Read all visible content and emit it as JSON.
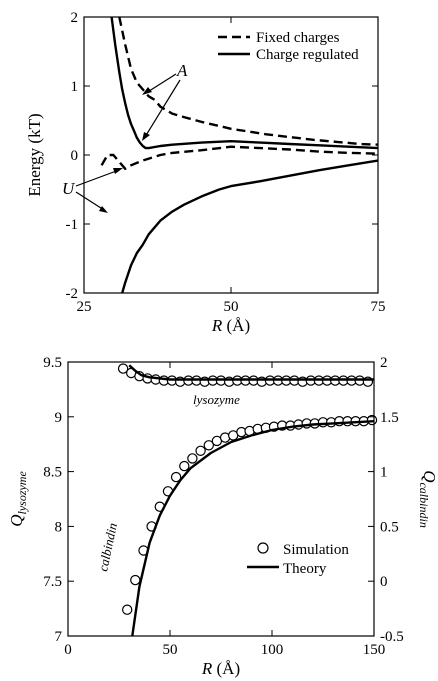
{
  "chart_data": [
    {
      "type": "line",
      "xlabel_var": "R",
      "xlabel_unit": " (Å)",
      "ylabel": "Energy (kT)",
      "xlim": [
        25,
        75
      ],
      "ylim": [
        -2,
        2
      ],
      "xticks": [
        "25",
        "50",
        "75"
      ],
      "yticks": [
        "-2",
        "-1",
        "0",
        "1",
        "2"
      ],
      "legend": [
        "Fixed charges",
        "Charge regulated"
      ],
      "annotations": [
        "A",
        "U"
      ],
      "series": [
        {
          "name": "Fixed charges",
          "label": "A",
          "style": "dashed",
          "x": [
            31.0,
            32.0,
            33.0,
            34.0,
            35.0,
            36.0,
            37.0,
            38.0,
            40.0,
            42.0,
            45.0,
            48.0,
            50.0,
            53.0,
            56.0,
            60.0,
            64.0,
            68.0,
            72.0,
            75.0
          ],
          "y": [
            2.0,
            1.6,
            1.25,
            1.05,
            0.95,
            0.85,
            0.8,
            0.7,
            0.6,
            0.55,
            0.48,
            0.42,
            0.38,
            0.34,
            0.3,
            0.26,
            0.22,
            0.19,
            0.16,
            0.15
          ]
        },
        {
          "name": "Charge regulated",
          "label": "A",
          "style": "solid",
          "x": [
            29.7,
            30.3,
            31.0,
            31.5,
            32.0,
            32.5,
            33.0,
            33.5,
            34.0,
            34.5,
            35.0,
            35.5,
            36.0,
            38.0,
            40.0,
            45.0,
            50.0,
            55.0,
            60.0,
            65.0,
            70.0,
            75.0
          ],
          "y": [
            2.0,
            1.6,
            1.2,
            0.95,
            0.75,
            0.58,
            0.45,
            0.35,
            0.25,
            0.18,
            0.13,
            0.1,
            0.1,
            0.13,
            0.15,
            0.18,
            0.2,
            0.18,
            0.16,
            0.14,
            0.12,
            0.1
          ]
        },
        {
          "name": "Fixed charges",
          "label": "U",
          "style": "dashed",
          "x": [
            28.0,
            29.0,
            30.0,
            31.0,
            32.0,
            33.0,
            35.0,
            38.0,
            40.0,
            45.0,
            50.0,
            55.0,
            60.0,
            65.0,
            70.0,
            75.0
          ],
          "y": [
            -0.15,
            0.0,
            0.0,
            -0.1,
            -0.2,
            -0.15,
            -0.08,
            0.0,
            0.03,
            0.07,
            0.12,
            0.1,
            0.08,
            0.05,
            0.03,
            0.02
          ]
        },
        {
          "name": "Charge regulated",
          "label": "U",
          "style": "solid",
          "x": [
            31.5,
            32.0,
            33.0,
            34.0,
            35.0,
            36.0,
            38.0,
            40.0,
            42.0,
            45.0,
            48.0,
            50.0,
            55.0,
            60.0,
            65.0,
            70.0,
            75.0
          ],
          "y": [
            -2.0,
            -1.85,
            -1.6,
            -1.42,
            -1.3,
            -1.15,
            -0.95,
            -0.82,
            -0.72,
            -0.6,
            -0.5,
            -0.45,
            -0.38,
            -0.3,
            -0.22,
            -0.15,
            -0.08
          ]
        }
      ]
    },
    {
      "type": "line",
      "xlabel_var": "R",
      "xlabel_unit": " (Å)",
      "ylabel_var": "Q",
      "ylabel_sub": "lysozyme",
      "y2label_var": "Q",
      "y2label_sub": "calbindin",
      "xlim": [
        0,
        150
      ],
      "ylim": [
        7,
        9.5
      ],
      "y2lim": [
        -0.5,
        2
      ],
      "xticks": [
        "0",
        "50",
        "100",
        "150"
      ],
      "yticks": [
        "7",
        "7.5",
        "8",
        "8.5",
        "9",
        "9.5"
      ],
      "y2ticks": [
        "-0.5",
        "0",
        "0.5",
        "1",
        "1.5",
        "2"
      ],
      "legend": [
        "Simulation",
        "Theory"
      ],
      "curve_labels": [
        "lysozyme",
        "calbindin"
      ],
      "series": [
        {
          "name": "Simulation",
          "label": "lysozyme",
          "axis": "left",
          "style": "markers",
          "x": [
            27,
            31,
            35,
            39,
            43,
            47,
            51,
            55,
            59,
            63,
            67,
            71,
            75,
            79,
            83,
            87,
            91,
            95,
            99,
            103,
            107,
            111,
            115,
            119,
            123,
            127,
            131,
            135,
            139,
            143,
            147
          ],
          "y": [
            9.44,
            9.4,
            9.37,
            9.35,
            9.34,
            9.33,
            9.33,
            9.32,
            9.33,
            9.33,
            9.32,
            9.33,
            9.33,
            9.32,
            9.33,
            9.33,
            9.33,
            9.32,
            9.33,
            9.33,
            9.33,
            9.33,
            9.32,
            9.33,
            9.33,
            9.33,
            9.33,
            9.33,
            9.33,
            9.33,
            9.32
          ]
        },
        {
          "name": "Theory",
          "label": "lysozyme",
          "axis": "left",
          "style": "solid",
          "x": [
            30,
            33,
            36,
            40,
            45,
            50,
            60,
            70,
            80,
            100,
            120,
            150
          ],
          "y": [
            9.47,
            9.42,
            9.38,
            9.36,
            9.35,
            9.34,
            9.34,
            9.34,
            9.34,
            9.34,
            9.34,
            9.34
          ]
        },
        {
          "name": "Simulation",
          "label": "calbindin",
          "axis": "right",
          "style": "markers",
          "x": [
            29,
            33,
            37,
            41,
            45,
            49,
            53,
            57,
            61,
            65,
            69,
            73,
            77,
            81,
            85,
            89,
            93,
            97,
            101,
            105,
            109,
            113,
            117,
            121,
            125,
            129,
            133,
            137,
            141,
            145,
            149
          ],
          "y": [
            -0.26,
            0.01,
            0.28,
            0.5,
            0.68,
            0.82,
            0.95,
            1.05,
            1.12,
            1.19,
            1.24,
            1.28,
            1.31,
            1.33,
            1.36,
            1.37,
            1.39,
            1.4,
            1.41,
            1.42,
            1.42,
            1.43,
            1.44,
            1.44,
            1.45,
            1.45,
            1.46,
            1.46,
            1.46,
            1.46,
            1.47
          ]
        },
        {
          "name": "Theory",
          "label": "calbindin",
          "axis": "right",
          "style": "solid",
          "x": [
            31.5,
            35,
            40,
            45,
            50,
            55,
            60,
            70,
            80,
            90,
            100,
            110,
            120,
            130,
            140,
            150
          ],
          "y": [
            -0.5,
            -0.05,
            0.35,
            0.6,
            0.78,
            0.92,
            1.03,
            1.17,
            1.27,
            1.33,
            1.38,
            1.41,
            1.43,
            1.44,
            1.45,
            1.46
          ]
        }
      ]
    }
  ]
}
